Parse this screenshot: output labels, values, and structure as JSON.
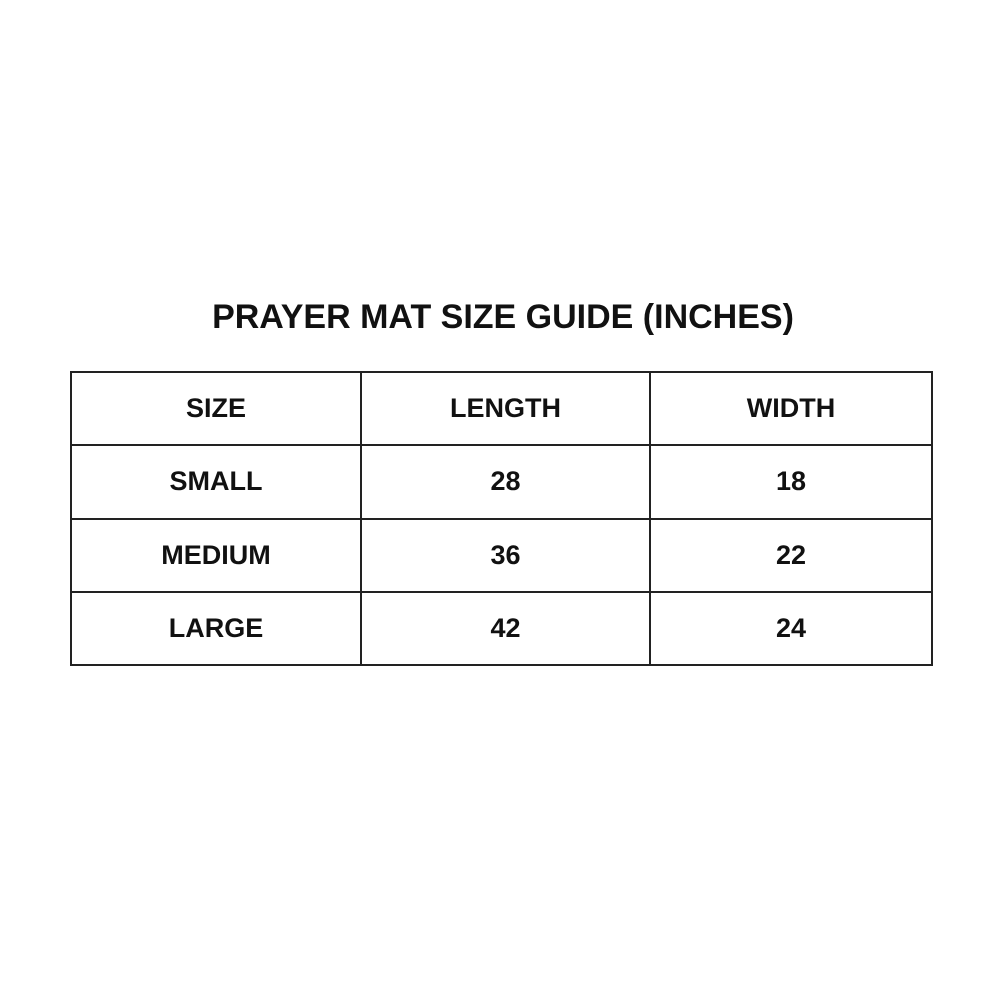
{
  "title": "PRAYER MAT SIZE GUIDE (INCHES)",
  "table": {
    "headers": [
      "SIZE",
      "LENGTH",
      "WIDTH"
    ],
    "rows": [
      [
        "SMALL",
        "28",
        "18"
      ],
      [
        "MEDIUM",
        "36",
        "22"
      ],
      [
        "LARGE",
        "42",
        "24"
      ]
    ]
  }
}
